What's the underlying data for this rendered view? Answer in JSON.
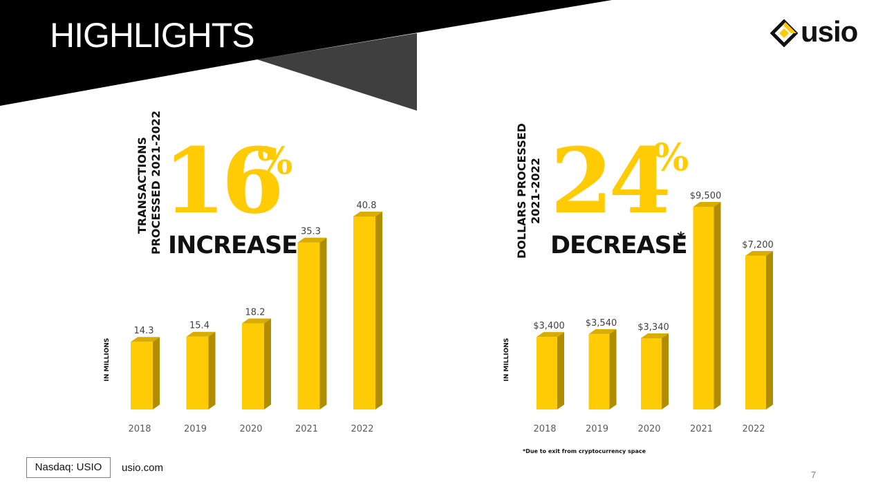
{
  "slide": {
    "title": "HIGHLIGHTS",
    "logo_text": "usio",
    "footer_ticker": "Nasdaq: USIO",
    "footer_site": "usio.com",
    "page_number": "7",
    "footnote": "*Due to exit from cryptocurrency space",
    "colors": {
      "accent": "#ffcb05",
      "bar_side": "#b08d00",
      "banner": "#000000",
      "banner_shadow": "#3f3f3f"
    }
  },
  "panels": [
    {
      "vertical_label_line1": "TRANSACTIONS",
      "vertical_label_line2": "PROCESSED 2021-2022",
      "headline_number": "16",
      "headline_symbol": "%",
      "headline_word": "INCREASE",
      "headline_mark": "",
      "units_label": "IN MILLIONS"
    },
    {
      "vertical_label_line1": "DOLLARS PROCESSED",
      "vertical_label_line2": "2021-2022",
      "headline_number": "24",
      "headline_symbol": "%",
      "headline_word": "DECREASE",
      "headline_mark": "*",
      "units_label": "IN MILLIONS"
    }
  ],
  "chart_data": [
    {
      "type": "bar",
      "title": "",
      "xlabel": "",
      "ylabel": "IN MILLIONS",
      "categories": [
        "2018",
        "2019",
        "2020",
        "2021",
        "2022"
      ],
      "values": [
        14.3,
        15.4,
        18.2,
        35.3,
        40.8
      ],
      "data_labels": [
        "14.3",
        "15.4",
        "18.2",
        "35.3",
        "40.8"
      ],
      "ylim": [
        0,
        45
      ],
      "grid": false,
      "style": "3d-column"
    },
    {
      "type": "bar",
      "title": "",
      "xlabel": "",
      "ylabel": "IN MILLIONS",
      "categories": [
        "2018",
        "2019",
        "2020",
        "2021",
        "2022"
      ],
      "values": [
        3400,
        3540,
        3340,
        9500,
        7200
      ],
      "data_labels": [
        "$3,400",
        "$3,540",
        "$3,340",
        "$9,500",
        "$7,200"
      ],
      "ylim": [
        0,
        10550
      ],
      "grid": false,
      "style": "3d-column"
    }
  ]
}
